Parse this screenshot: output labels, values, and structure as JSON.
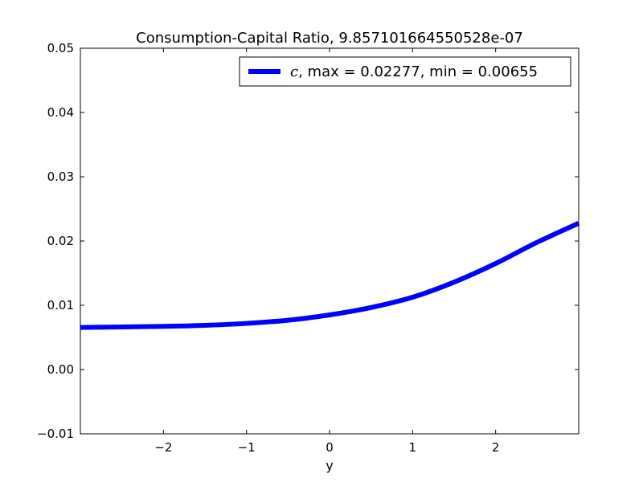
{
  "chart_data": {
    "type": "line",
    "title": "Consumption-Capital Ratio, 9.857101664550528e-07",
    "xlabel": "y",
    "ylabel": "",
    "xlim": [
      -3.0,
      3.0
    ],
    "ylim": [
      -0.01,
      0.05
    ],
    "x_ticks": [
      -2,
      -1,
      0,
      1,
      2
    ],
    "x_tick_labels": [
      "−2",
      "−1",
      "0",
      "1",
      "2"
    ],
    "y_ticks": [
      -0.01,
      0.0,
      0.01,
      0.02,
      0.03,
      0.04,
      0.05
    ],
    "y_tick_labels": [
      "−0.01",
      "0.00",
      "0.01",
      "0.02",
      "0.03",
      "0.04",
      "0.05"
    ],
    "grid": false,
    "legend": {
      "placement": "top-right",
      "entries": [
        {
          "var": "c",
          "rest": ", max = 0.02277, min = 0.00655"
        }
      ]
    },
    "series": [
      {
        "color": "#0000ff",
        "x": [
          -3.0,
          -2.5,
          -2.0,
          -1.5,
          -1.0,
          -0.5,
          0.0,
          0.5,
          1.0,
          1.5,
          2.0,
          2.5,
          3.0
        ],
        "values": [
          0.00655,
          0.00662,
          0.00672,
          0.00688,
          0.00718,
          0.00767,
          0.0085,
          0.00965,
          0.01125,
          0.0136,
          0.0165,
          0.0198,
          0.02277
        ]
      }
    ]
  }
}
